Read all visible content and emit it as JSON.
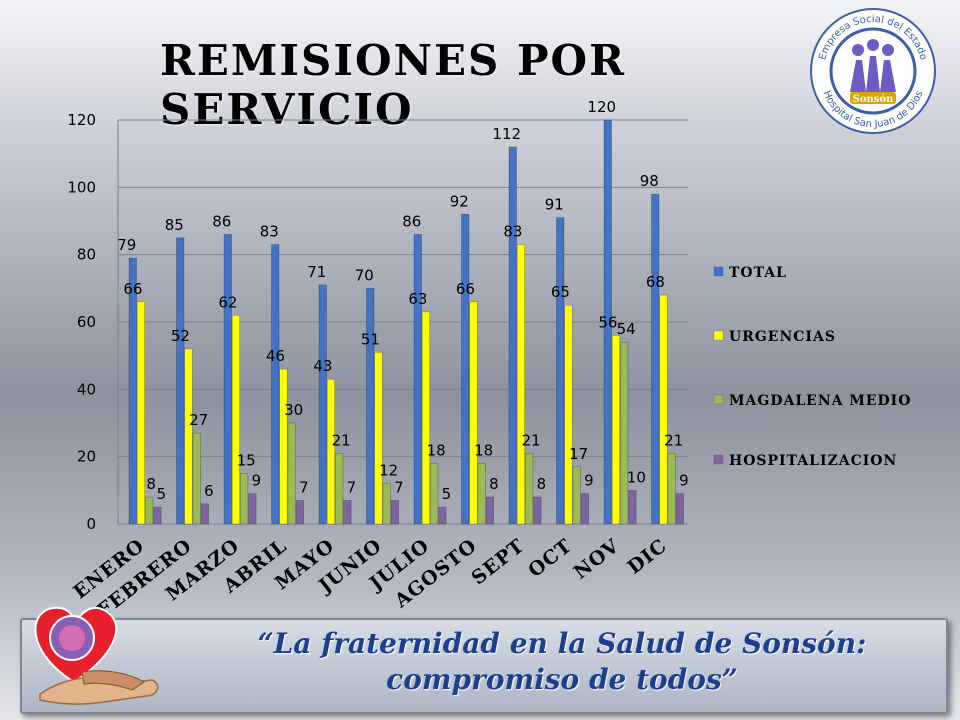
{
  "title": "REMISIONES POR SERVICIO",
  "logo": {
    "text_top": "Empresa Social del Estado",
    "text_bottom": "Hospital San Juan de Dios",
    "center_text": "Sonsón",
    "colors": {
      "ring": "#3a60a8",
      "center": "#6d5ac4",
      "badge": "#d9a300"
    }
  },
  "footer": {
    "quote": "“La fraternidad en la Salud de Sonsón: compromiso de todos”",
    "icon": "heart-hands-icon"
  },
  "chart_data": {
    "type": "bar",
    "categories": [
      "ENERO",
      "FEBRERO",
      "MARZO",
      "ABRIL",
      "MAYO",
      "JUNIO",
      "JULIO",
      "AGOSTO",
      "SEPT",
      "OCT",
      "NOV",
      "DIC"
    ],
    "series": [
      {
        "name": "TOTAL",
        "color": "#4472c4",
        "values": [
          79,
          85,
          86,
          83,
          71,
          70,
          86,
          92,
          112,
          91,
          120,
          98
        ]
      },
      {
        "name": "URGENCIAS",
        "color": "#ffff00",
        "values": [
          66,
          52,
          62,
          46,
          43,
          51,
          63,
          66,
          83,
          65,
          56,
          68
        ]
      },
      {
        "name": "MAGDALENA MEDIO",
        "color": "#9bbb59",
        "values": [
          8,
          27,
          15,
          30,
          21,
          12,
          18,
          18,
          21,
          17,
          54,
          21
        ]
      },
      {
        "name": "HOSPITALIZACION",
        "color": "#8064a2",
        "values": [
          5,
          6,
          9,
          7,
          7,
          7,
          5,
          8,
          8,
          9,
          10,
          9
        ]
      }
    ],
    "y_ticks": [
      "0",
      "20",
      "40",
      "60",
      "80",
      "100",
      "120"
    ],
    "ylim": [
      0,
      120
    ],
    "grid": true,
    "legend_position": "right"
  }
}
